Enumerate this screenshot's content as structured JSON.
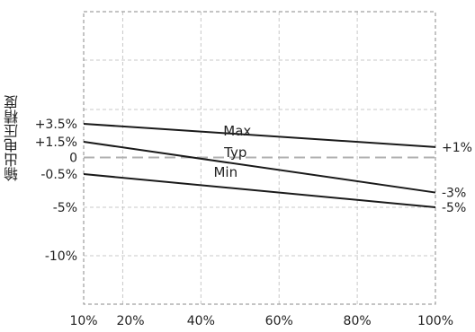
{
  "chart_data": {
    "type": "line",
    "title": "",
    "xlabel": "",
    "ylabel": "输出电压精度",
    "x_ticks": [
      10,
      20,
      40,
      60,
      80,
      100
    ],
    "x_tick_labels": [
      "10%",
      "20%",
      "40%",
      "60%",
      "80%",
      "100%"
    ],
    "xlim": [
      10,
      100
    ],
    "y_ticks": [
      3.5,
      1.5,
      0,
      -0.5,
      -5,
      -10
    ],
    "y_tick_labels": [
      "+3.5%",
      "+1.5%",
      "0",
      "-0.5%",
      "-5%",
      "-10%"
    ],
    "grid": true,
    "series": [
      {
        "name": "Max",
        "x": [
          10,
          100
        ],
        "y": [
          3.5,
          1
        ],
        "end_label": "+1%"
      },
      {
        "name": "Typ",
        "x": [
          10,
          100
        ],
        "y": [
          1.5,
          -3
        ],
        "end_label": "-3%"
      },
      {
        "name": "Min",
        "x": [
          10,
          100
        ],
        "y": [
          -0.5,
          -5
        ],
        "end_label": "-5%"
      }
    ],
    "reference_line": {
      "y": 0,
      "style": "dashed"
    },
    "colors": {
      "line": "#1a1a1a",
      "grid": "#c8c8c8",
      "reference": "#b0b0b0",
      "text": "#222222"
    }
  }
}
